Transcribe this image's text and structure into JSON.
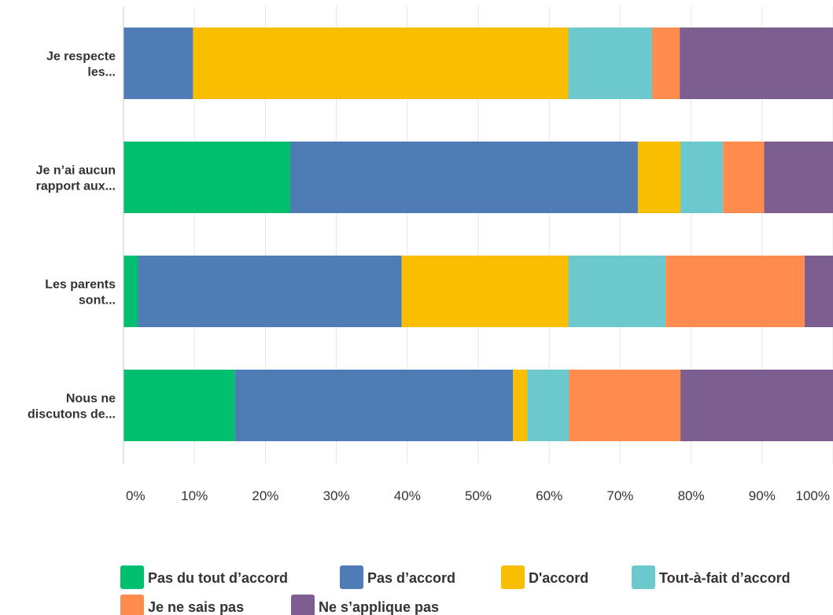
{
  "chart_data": {
    "type": "bar",
    "orientation": "horizontal",
    "stacked": true,
    "grid": true,
    "legend_position": "bottom",
    "categories": [
      [
        "Je respecte",
        "les..."
      ],
      [
        "Je n’ai aucun",
        "rapport aux..."
      ],
      [
        "Les parents",
        "sont..."
      ],
      [
        "Nous ne",
        "discutons de..."
      ]
    ],
    "xlim": [
      0,
      100
    ],
    "x_ticks": [
      "0%",
      "10%",
      "20%",
      "30%",
      "40%",
      "50%",
      "60%",
      "70%",
      "80%",
      "90%",
      "100%"
    ],
    "series": [
      {
        "name": "Pas du tout d’accord",
        "color": "#00BF6F",
        "values": [
          0.0,
          23.5,
          2.0,
          15.7
        ]
      },
      {
        "name": "Pas d’accord",
        "color": "#507CB6",
        "values": [
          9.8,
          49.0,
          37.2,
          39.2
        ]
      },
      {
        "name": "D'accord",
        "color": "#F9BE00",
        "values": [
          52.9,
          6.0,
          23.5,
          2.0
        ]
      },
      {
        "name": "Tout-à-fait d’accord",
        "color": "#6BC8CD",
        "values": [
          11.8,
          6.0,
          13.7,
          5.9
        ]
      },
      {
        "name": "Je ne sais pas",
        "color": "#FF8B4F",
        "values": [
          3.9,
          5.8,
          19.6,
          15.7
        ]
      },
      {
        "name": "Ne s’applique pas",
        "color": "#7D5E90",
        "values": [
          21.6,
          9.7,
          4.0,
          21.5
        ]
      }
    ]
  }
}
